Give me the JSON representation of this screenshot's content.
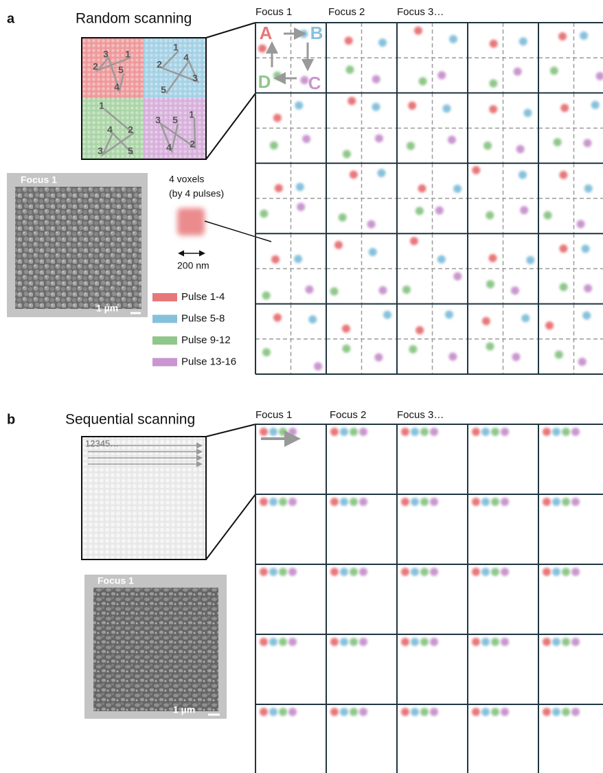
{
  "panel_a": {
    "label": "a",
    "title": "Random scanning",
    "focus_labels": [
      "Focus 1",
      "Focus 2",
      "Focus 3…"
    ],
    "corner_labels": [
      "A",
      "B",
      "C",
      "D"
    ],
    "quadrant_numbers": [
      [
        "3",
        "1",
        "2",
        "5",
        "4"
      ],
      [
        "1",
        "4",
        "2",
        "3",
        "5"
      ],
      [
        "1",
        "4",
        "2",
        "3",
        "5"
      ],
      [
        "3",
        "5",
        "1",
        "2",
        "4"
      ]
    ],
    "sem_label": "Focus 1",
    "scale_bar": "1 µm",
    "voxel_caption": [
      "4 voxels",
      "(by 4 pulses)"
    ],
    "voxel_scale": "200 nm",
    "legend": [
      {
        "label": "Pulse 1-4",
        "color": "#e8777a"
      },
      {
        "label": "Pulse 5-8",
        "color": "#86c1dc"
      },
      {
        "label": "Pulse 9-12",
        "color": "#8fc78a"
      },
      {
        "label": "Pulse 13-16",
        "color": "#c996cf"
      }
    ]
  },
  "panel_b": {
    "label": "b",
    "title": "Sequential scanning",
    "focus_labels": [
      "Focus 1",
      "Focus 2",
      "Focus 3…"
    ],
    "sequence_text": "12345…",
    "sem_label": "Focus 1",
    "scale_bar": "1 µm"
  }
}
